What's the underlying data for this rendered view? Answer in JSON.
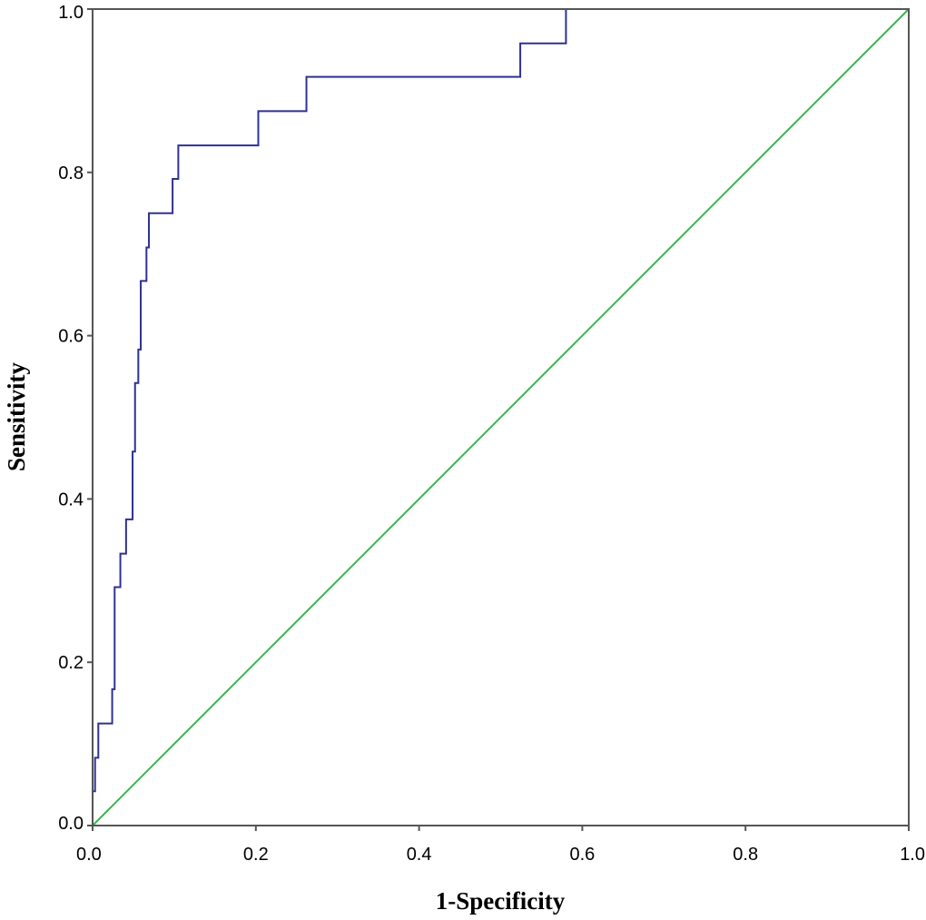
{
  "chart_data": {
    "type": "line",
    "title": "",
    "xlabel": "1-Specificity",
    "ylabel": "Sensitivity",
    "xlim": [
      0.0,
      1.0
    ],
    "ylim": [
      0.0,
      1.0
    ],
    "x_ticks": [
      "0.0",
      "0.2",
      "0.4",
      "0.6",
      "0.8",
      "1.0"
    ],
    "y_ticks": [
      "0.0",
      "0.2",
      "0.4",
      "0.6",
      "0.8",
      "1.0"
    ],
    "grid": false,
    "legend": "none",
    "series": [
      {
        "color": "#2e3192",
        "step": true,
        "points": [
          [
            0.0,
            0.0
          ],
          [
            0.0,
            0.042
          ],
          [
            0.003,
            0.042
          ],
          [
            0.003,
            0.083
          ],
          [
            0.007,
            0.083
          ],
          [
            0.007,
            0.125
          ],
          [
            0.024,
            0.125
          ],
          [
            0.024,
            0.167
          ],
          [
            0.027,
            0.167
          ],
          [
            0.027,
            0.292
          ],
          [
            0.034,
            0.292
          ],
          [
            0.034,
            0.333
          ],
          [
            0.041,
            0.333
          ],
          [
            0.041,
            0.375
          ],
          [
            0.049,
            0.375
          ],
          [
            0.049,
            0.458
          ],
          [
            0.052,
            0.458
          ],
          [
            0.052,
            0.542
          ],
          [
            0.056,
            0.542
          ],
          [
            0.056,
            0.583
          ],
          [
            0.059,
            0.583
          ],
          [
            0.059,
            0.667
          ],
          [
            0.066,
            0.667
          ],
          [
            0.066,
            0.708
          ],
          [
            0.069,
            0.708
          ],
          [
            0.069,
            0.75
          ],
          [
            0.098,
            0.75
          ],
          [
            0.098,
            0.792
          ],
          [
            0.105,
            0.792
          ],
          [
            0.105,
            0.833
          ],
          [
            0.203,
            0.833
          ],
          [
            0.203,
            0.875
          ],
          [
            0.262,
            0.875
          ],
          [
            0.262,
            0.917
          ],
          [
            0.524,
            0.917
          ],
          [
            0.524,
            0.958
          ],
          [
            0.58,
            0.958
          ],
          [
            0.58,
            1.0
          ],
          [
            1.0,
            1.0
          ]
        ]
      },
      {
        "color": "#3cb44b",
        "step": false,
        "points": [
          [
            0.0,
            0.0
          ],
          [
            1.0,
            1.0
          ]
        ]
      }
    ]
  }
}
